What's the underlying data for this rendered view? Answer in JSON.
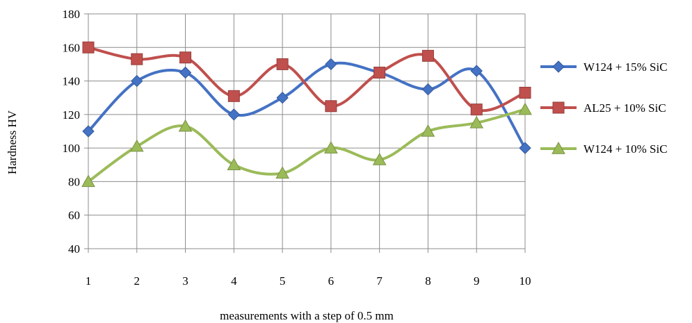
{
  "chart_data": {
    "type": "line",
    "title": "",
    "xlabel": "measurements with a step of 0.5 mm",
    "ylabel": "Hardness HV",
    "categories": [
      "1",
      "2",
      "3",
      "4",
      "5",
      "6",
      "7",
      "8",
      "9",
      "10"
    ],
    "ylim": [
      40,
      180
    ],
    "yticks": [
      "40",
      "60",
      "80",
      "100",
      "120",
      "140",
      "160",
      "180"
    ],
    "grid": true,
    "legend_position": "right",
    "series": [
      {
        "name": "W124 + 15% SiC",
        "marker": "diamond",
        "color": "#4472c4",
        "values": [
          110,
          140,
          145,
          120,
          130,
          150,
          145,
          135,
          146,
          100
        ]
      },
      {
        "name": "AL25 + 10% SiC",
        "marker": "square",
        "color": "#c0504d",
        "values": [
          160,
          153,
          154,
          131,
          150,
          125,
          145,
          155,
          123,
          133
        ]
      },
      {
        "name": "W124 + 10% SiC",
        "marker": "triangle",
        "color": "#9bbb59",
        "values": [
          80,
          101,
          113,
          90,
          85,
          100,
          93,
          110,
          115,
          123
        ]
      }
    ]
  }
}
